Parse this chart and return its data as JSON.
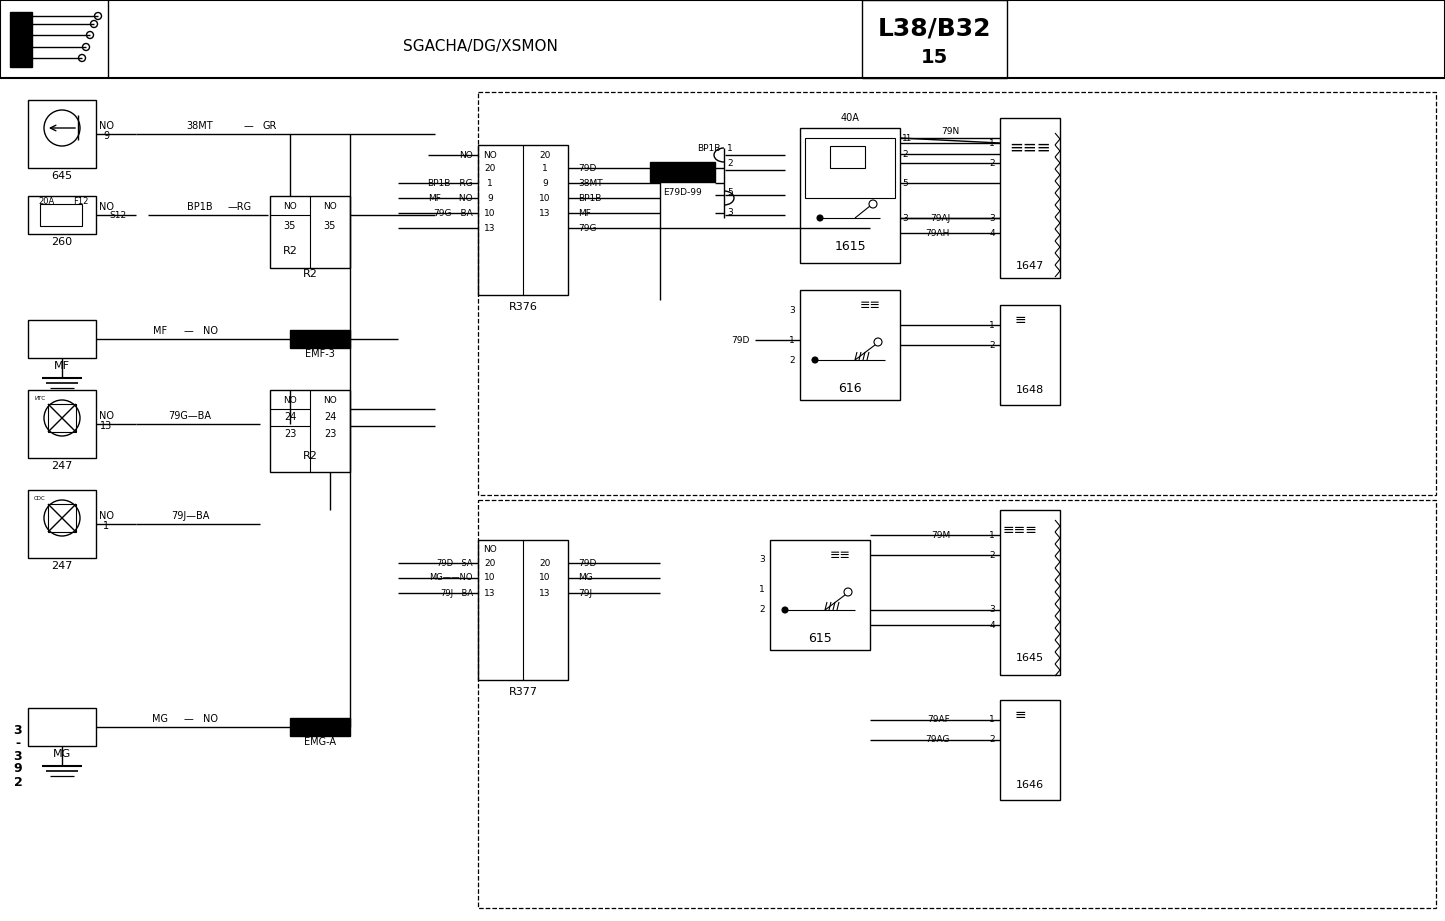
{
  "bg": "#ffffff",
  "lc": "#000000",
  "header_text": "SGACHA/DG/XSMON",
  "title1": "L38/B32",
  "title2": "15",
  "page_ref": "3-392"
}
